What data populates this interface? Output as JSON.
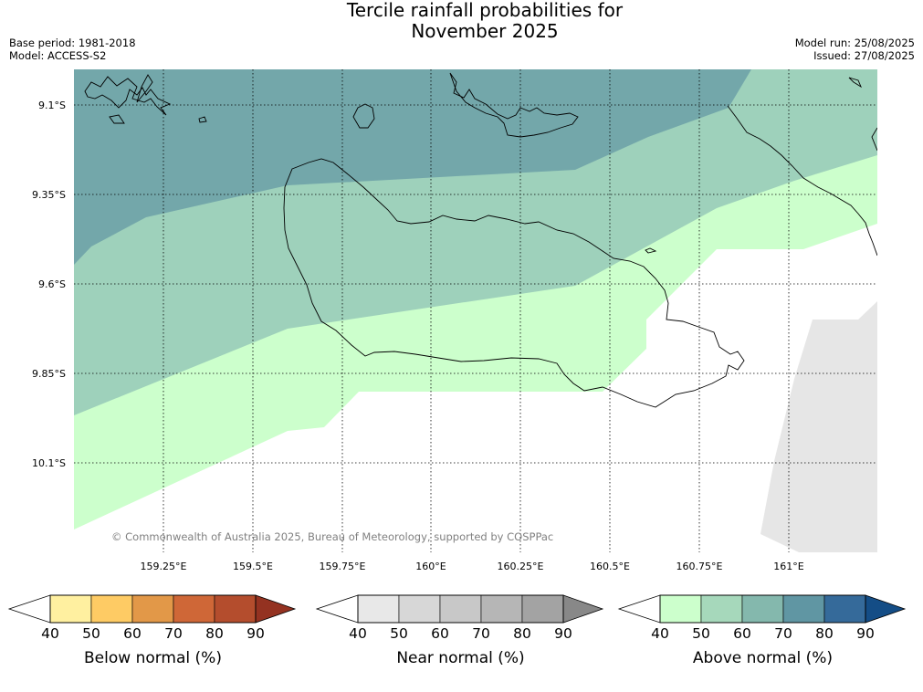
{
  "title_line1": "Tercile rainfall probabilities for",
  "title_line2": "November 2025",
  "base_period": "Base period: 1981-2018",
  "model": "Model: ACCESS-S2",
  "model_run": "Model run: 25/08/2025",
  "issued": "Issued: 27/08/2025",
  "copyright": "© Commonwealth of Australia 2025, Bureau of Meteorology, supported by COSPPac",
  "lat_labels": [
    "9.1°S",
    "9.35°S",
    "9.6°S",
    "9.85°S",
    "10.1°S"
  ],
  "lon_labels": [
    "159.25°E",
    "159.5°E",
    "159.75°E",
    "160°E",
    "160.25°E",
    "160.5°E",
    "160.75°E",
    "161°E"
  ],
  "colors": {
    "below": [
      "#fff0a0",
      "#fecb64",
      "#e29848",
      "#cf6737",
      "#b44d2d",
      "#943221"
    ],
    "near": [
      "#e8e8e8",
      "#d7d7d7",
      "#c8c8c8",
      "#b6b6b6",
      "#a3a3a3",
      "#888888"
    ],
    "above": [
      "#ccffcc",
      "#a6d8bb",
      "#84b8ad",
      "#6096a3",
      "#356a9a",
      "#144d86"
    ],
    "map_above_40": "#ccffcc",
    "map_above_50": "#9ed1bb",
    "map_above_60": "#73a7aa",
    "map_near_40": "#e6e6e6"
  },
  "colorbars": [
    {
      "key": "below",
      "label": "Below normal (%)",
      "ticks": [
        "40",
        "50",
        "60",
        "70",
        "80",
        "90"
      ]
    },
    {
      "key": "near",
      "label": "Near normal (%)",
      "ticks": [
        "40",
        "50",
        "60",
        "70",
        "80",
        "90"
      ]
    },
    {
      "key": "above",
      "label": "Above normal (%)",
      "ticks": [
        "40",
        "50",
        "60",
        "70",
        "80",
        "90"
      ]
    }
  ]
}
